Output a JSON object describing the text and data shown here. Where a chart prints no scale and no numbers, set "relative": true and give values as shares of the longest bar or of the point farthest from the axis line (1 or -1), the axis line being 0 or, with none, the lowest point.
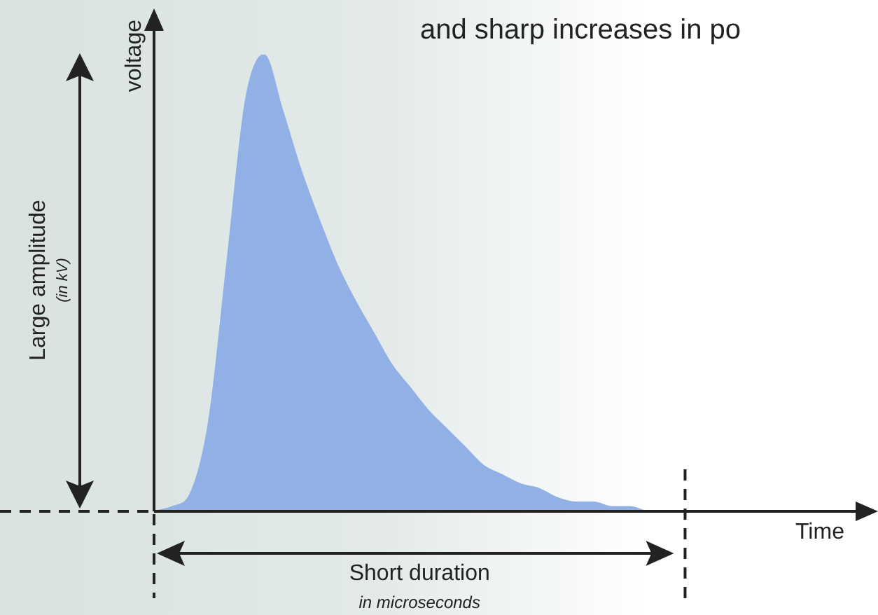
{
  "chart_data": {
    "type": "area",
    "title": "and sharp increases in po",
    "xlabel": "Time",
    "ylabel": "voltage",
    "annotations": [
      "Large amplitude",
      "(in kV)",
      "Short duration",
      "in microseconds"
    ],
    "categories": [
      null,
      null,
      null,
      null,
      null,
      null,
      null,
      null,
      null,
      null,
      null,
      null,
      null,
      null,
      null,
      null,
      null,
      null,
      null,
      null,
      null,
      null,
      null,
      null,
      null,
      null,
      null,
      null,
      null,
      null,
      null,
      null,
      null,
      null,
      null,
      null,
      null,
      null,
      null,
      null
    ],
    "relative": true,
    "color": "#91b1e6",
    "grid": false,
    "legend": false,
    "values": [
      0,
      0.01,
      0.04,
      0.2,
      0.55,
      0.9,
      1,
      0.88,
      0.75,
      0.64,
      0.54,
      0.46,
      0.39,
      0.32,
      0.27,
      0.22,
      0.18,
      0.14,
      0.1,
      0.08,
      0.06,
      0.05,
      0.03,
      0.02,
      0.02,
      0.01,
      0.01,
      0,
      0,
      0,
      null,
      null,
      null,
      null,
      null,
      null,
      null,
      null,
      null,
      null
    ]
  }
}
